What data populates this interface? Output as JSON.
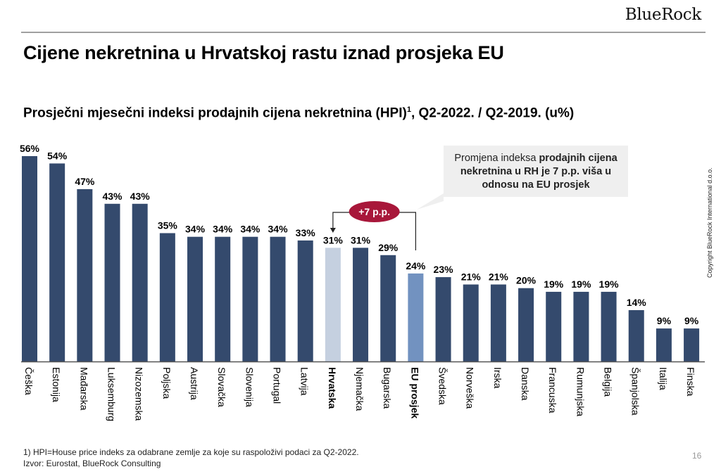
{
  "header": {
    "logo": "BlueRock"
  },
  "title": "Cijene nekretnina u Hrvatskoj rastu iznad prosjeka EU",
  "subtitle": {
    "text": "Prosječni mjesečni indeksi prodajnih cijena nekretnina (HPI)",
    "sup": "1",
    "rest": ", Q2-2022. / Q2-2019. (u%)"
  },
  "copyright": "Copyright BlueRock International d.o.o.",
  "callout": {
    "normal": "Promjena indeksa ",
    "bold": "prodajnih cijena nekretnina u RH je 7 p.p. viša u odnosu na EU prosjek"
  },
  "badge": "+7 p.p.",
  "footnote": "1) HPI=House price indeks za odabrane zemlje za koje su raspoloživi podaci za Q2-2022.",
  "source": "Izvor: Eurostat, BlueRock Consulting",
  "page_number": "16",
  "colors": {
    "default": "#344a6d",
    "croatia": "#c5d0e0",
    "eu": "#7292c0",
    "badge": "#a8173a"
  },
  "chart_data": {
    "type": "bar",
    "categories": [
      "Češka",
      "Estonija",
      "Mađarska",
      "Luksemburg",
      "Nizozemska",
      "Poljska",
      "Austrija",
      "Slovačka",
      "Slovenija",
      "Portugal",
      "Latvija",
      "Hrvatska",
      "Njemačka",
      "Bugarska",
      "EU prosjek",
      "Švedska",
      "Norveška",
      "Irska",
      "Danska",
      "Francuska",
      "Rumunjska",
      "Belgija",
      "Španjolska",
      "Italija",
      "Finska"
    ],
    "values": [
      56,
      54,
      47,
      43,
      43,
      35,
      34,
      34,
      34,
      34,
      33,
      31,
      31,
      29,
      24,
      23,
      21,
      21,
      20,
      19,
      19,
      19,
      14,
      9,
      9
    ],
    "data_labels": [
      "56%",
      "54%",
      "47%",
      "43%",
      "43%",
      "35%",
      "34%",
      "34%",
      "34%",
      "34%",
      "33%",
      "31%",
      "31%",
      "29%",
      "24%",
      "23%",
      "21%",
      "21%",
      "20%",
      "19%",
      "19%",
      "19%",
      "14%",
      "9%",
      "9%"
    ],
    "highlight": {
      "Hrvatska": "croatia",
      "EU prosjek": "eu"
    },
    "ylim": [
      0,
      56
    ],
    "grid": false,
    "legend": "none"
  }
}
